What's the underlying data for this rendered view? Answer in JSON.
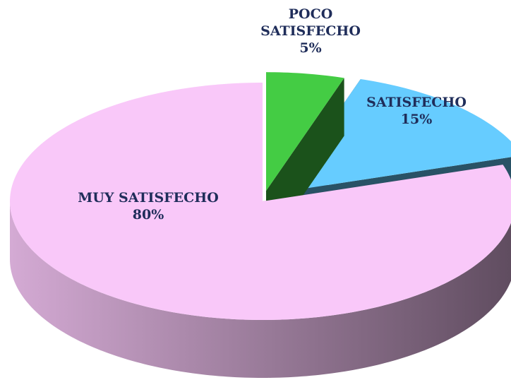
{
  "chart_data": {
    "type": "pie3d",
    "categories": [
      "POCO SATISFECHO",
      "SATISFECHO",
      "MUY SATISFECHO"
    ],
    "values": [
      5,
      15,
      80
    ],
    "value_labels": [
      "5%",
      "15%",
      "80%"
    ],
    "colors": [
      "#44cc44",
      "#66ccff",
      "#f9c8f9"
    ]
  }
}
